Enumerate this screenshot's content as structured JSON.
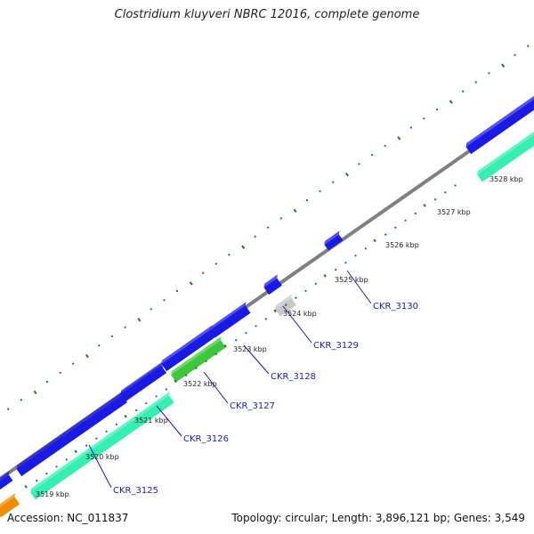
{
  "title": "Clostridium kluyveri NBRC 12016, complete genome",
  "footer": {
    "accession": "Accession: NC_011837",
    "summary": "Topology: circular; Length: 3,896,121 bp; Genes: 3,549"
  },
  "colors": {
    "backbone": "#808080",
    "forward_gene": "#1a1ae6",
    "reverse_gene": "#33f0b0",
    "highlight_gene": "#3cc83c",
    "grey_gene": "#c8c8c8",
    "orange_gene": "#f08c00",
    "tick_dark": "#1e7a1e",
    "label_blue": "#1a1ab5"
  },
  "kbp_ticks": [
    "3519 kbp",
    "3520 kbp",
    "3521 kbp",
    "3522 kbp",
    "3523 kbp",
    "3524 kbp",
    "3525 kbp",
    "3526 kbp",
    "3527 kbp",
    "3528 kbp"
  ],
  "gene_labels": [
    "CKR_3125",
    "CKR_3126",
    "CKR_3127",
    "CKR_3128",
    "CKR_3129",
    "CKR_3130"
  ]
}
